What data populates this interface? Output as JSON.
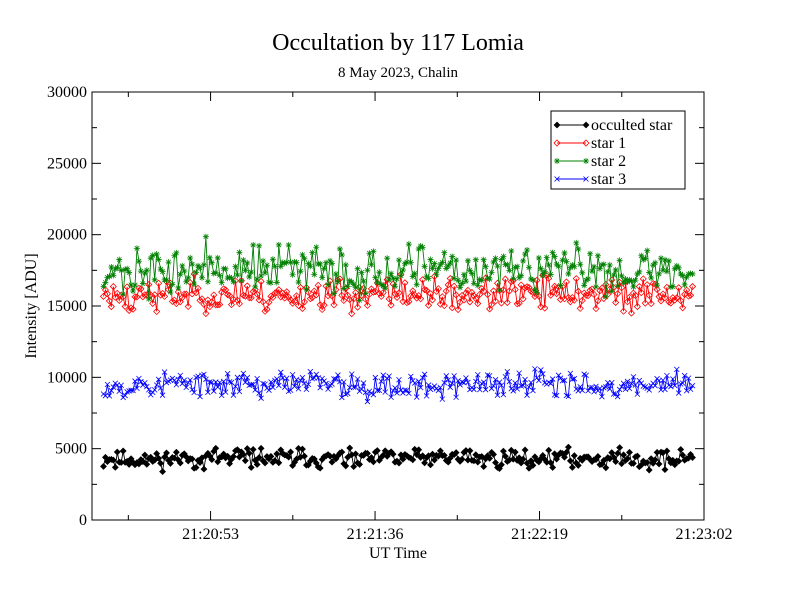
{
  "chart_data": {
    "type": "line",
    "title": "Occultation by 117 Lomia",
    "subtitle": "8 May 2023, Chalin",
    "xlabel": "UT Time",
    "ylabel": "Intensity [ADU]",
    "ylim": [
      0,
      30000
    ],
    "yticks": [
      "0",
      "5000",
      "10000",
      "15000",
      "20000",
      "25000",
      "30000"
    ],
    "xlim": [
      "21:20:22",
      "21:23:02"
    ],
    "xticks": [
      "21:20:53",
      "21:21:36",
      "21:22:19",
      "21:23:02"
    ],
    "grid": false,
    "legend_position": "top-right",
    "x_start": "21:20:25",
    "x_end": "21:22:59",
    "n_points": 300,
    "series": [
      {
        "name": "occulted star",
        "color": "#000000",
        "marker": "diamond",
        "mean": 4300,
        "spread": 450,
        "seed": 11
      },
      {
        "name": "star 1",
        "color": "#ff0000",
        "marker": "diamond-open",
        "mean": 15800,
        "spread": 800,
        "seed": 23
      },
      {
        "name": "star 2",
        "color": "#008000",
        "marker": "star",
        "mean": 17500,
        "spread": 1100,
        "seed": 37
      },
      {
        "name": "star 3",
        "color": "#0000ff",
        "marker": "x",
        "mean": 9500,
        "spread": 650,
        "seed": 53
      }
    ]
  }
}
